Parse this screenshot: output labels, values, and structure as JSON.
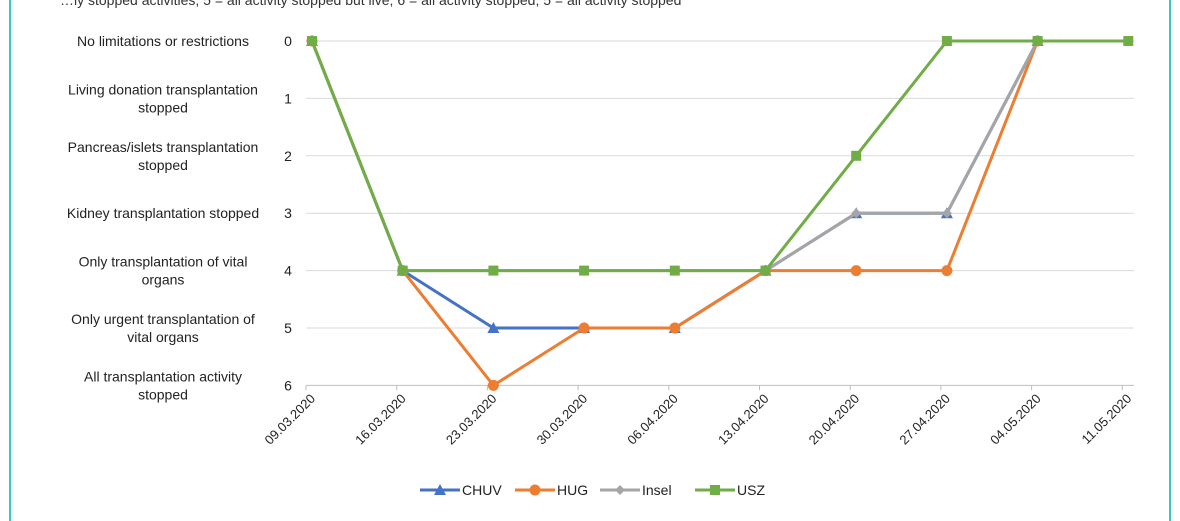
{
  "frame": {
    "border_color": "#3cc8c0"
  },
  "caption": {
    "text": "…ly stopped activities; 5 = all activity stopped but live; 6 = all activity stopped; 5 = all activity stopped"
  },
  "chart_data": {
    "type": "line",
    "title": "",
    "xlabel": "",
    "ylabel": "",
    "x": [
      "09.03.2020",
      "16.03.2020",
      "23.03.2020",
      "30.03.2020",
      "06.04.2020",
      "13.04.2020",
      "20.04.2020",
      "27.04.2020",
      "04.05.2020",
      "11.05.2020"
    ],
    "ylim": [
      0,
      6
    ],
    "y_inverted": true,
    "y_ticks": [
      "0",
      "1",
      "2",
      "3",
      "4",
      "5",
      "6"
    ],
    "y_category_labels": [
      [
        "No limitations or restrictions"
      ],
      [
        "Living donation transplantation",
        "stopped"
      ],
      [
        "Pancreas/islets transplantation",
        "stopped"
      ],
      [
        "Kidney transplantation stopped"
      ],
      [
        "Only transplantation of vital",
        "organs"
      ],
      [
        "Only urgent transplantation of",
        "vital organs"
      ],
      [
        "All transplantation activity",
        "stopped"
      ]
    ],
    "grid": true,
    "legend_position": "bottom",
    "series": [
      {
        "name": "CHUV",
        "color": "#4472c4",
        "marker": "triangle",
        "values": [
          0,
          4,
          5,
          5,
          5,
          4,
          3,
          3,
          0,
          null
        ]
      },
      {
        "name": "HUG",
        "color": "#ed7d31",
        "marker": "circle",
        "values": [
          0,
          4,
          6,
          5,
          5,
          4,
          4,
          4,
          0,
          null
        ]
      },
      {
        "name": "Insel",
        "color": "#a5a5a5",
        "marker": "diamond",
        "values": [
          0,
          4,
          4,
          4,
          4,
          4,
          3,
          3,
          0,
          null
        ]
      },
      {
        "name": "USZ",
        "color": "#70ad47",
        "marker": "square",
        "values": [
          0,
          4,
          4,
          4,
          4,
          4,
          2,
          0,
          0,
          0
        ]
      }
    ]
  }
}
